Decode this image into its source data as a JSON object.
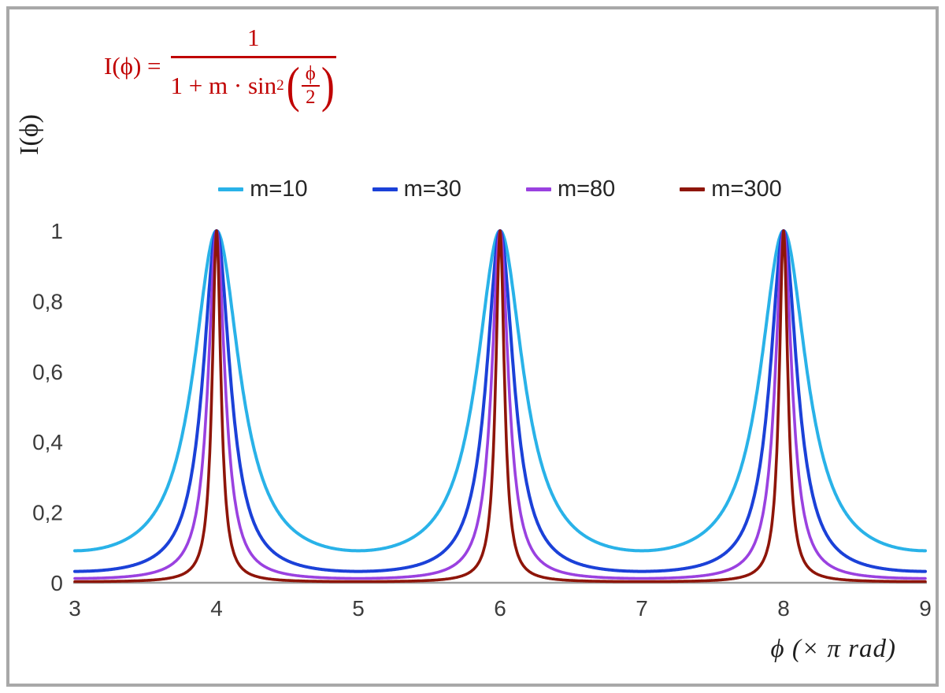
{
  "formula": {
    "lhs": "I(ϕ) =",
    "numerator": "1",
    "den_prefix": "1 + m · sin",
    "den_sup": "2",
    "paren_open": "(",
    "inner_numerator": "ϕ",
    "inner_denominator": "2",
    "paren_close": ")",
    "color": "#c00000"
  },
  "chart_data": {
    "type": "line",
    "function": "I(ϕ) = 1 / (1 + m·sin²(ϕ/2))",
    "x_label": "ϕ  (× π rad)",
    "y_label": "I(ϕ)",
    "x_range": [
      3,
      9
    ],
    "y_range": [
      0,
      1
    ],
    "x_unit": "π rad",
    "grid": "off",
    "legend_position": "top-center",
    "x_ticks": [
      {
        "value": 3,
        "label": "3"
      },
      {
        "value": 4,
        "label": "4"
      },
      {
        "value": 5,
        "label": "5"
      },
      {
        "value": 6,
        "label": "6"
      },
      {
        "value": 7,
        "label": "7"
      },
      {
        "value": 8,
        "label": "8"
      },
      {
        "value": 9,
        "label": "9"
      }
    ],
    "y_ticks": [
      {
        "value": 0,
        "label": "0"
      },
      {
        "value": 0.2,
        "label": "0,2"
      },
      {
        "value": 0.4,
        "label": "0,4"
      },
      {
        "value": 0.6,
        "label": "0,6"
      },
      {
        "value": 0.8,
        "label": "0,8"
      },
      {
        "value": 1,
        "label": "1"
      }
    ],
    "series": [
      {
        "name": "m=10",
        "m": 10,
        "color": "#29b2e8",
        "stroke_width": 4
      },
      {
        "name": "m=30",
        "m": 30,
        "color": "#1b41d8",
        "stroke_width": 4
      },
      {
        "name": "m=80",
        "m": 80,
        "color": "#9a41e0",
        "stroke_width": 3.6
      },
      {
        "name": "m=300",
        "m": 300,
        "color": "#8e1509",
        "stroke_width": 3.6
      }
    ],
    "peaks_at_x": [
      4,
      6,
      8
    ],
    "peak_value": 1,
    "axis_color": "#9d9d9d",
    "tick_text_color": "#3c3c3c"
  }
}
